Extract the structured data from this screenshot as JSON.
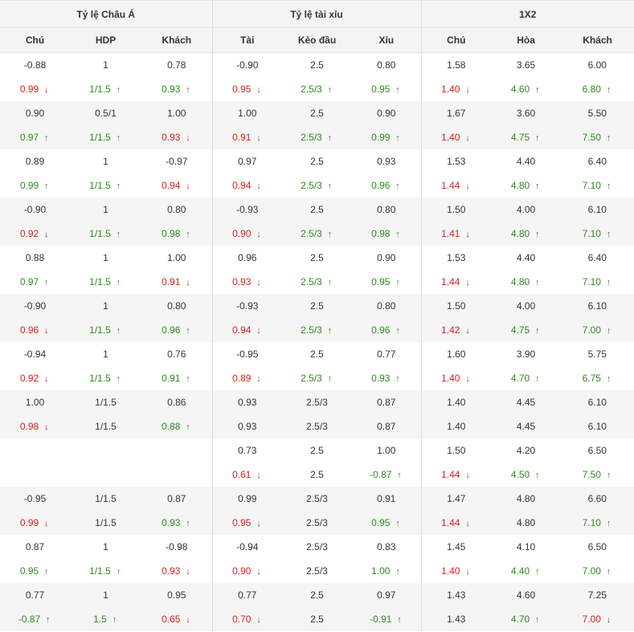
{
  "colors": {
    "up": "#2e8b1e",
    "down": "#d6201c"
  },
  "groups": [
    "Tỷ lệ Châu Á",
    "Tỷ lệ tài xỉu",
    "1X2"
  ],
  "columns": [
    "Chú",
    "HDP",
    "Khách",
    "Tài",
    "Kèo đầu",
    "Xỉu",
    "Chú",
    "Hòa",
    "Khách"
  ],
  "arrows": {
    "up": "↑",
    "down": "↓"
  },
  "blocks": [
    {
      "rows": [
        [
          {
            "v": "-0.88"
          },
          {
            "v": "1"
          },
          {
            "v": "0.78"
          },
          {
            "v": "-0.90"
          },
          {
            "v": "2.5"
          },
          {
            "v": "0.80"
          },
          {
            "v": "1.58"
          },
          {
            "v": "3.65"
          },
          {
            "v": "6.00"
          }
        ],
        [
          {
            "v": "0.99",
            "d": "down"
          },
          {
            "v": "1/1.5",
            "d": "up"
          },
          {
            "v": "0.93",
            "d": "up"
          },
          {
            "v": "0.95",
            "d": "down"
          },
          {
            "v": "2.5/3",
            "d": "up"
          },
          {
            "v": "0.95",
            "d": "up"
          },
          {
            "v": "1.40",
            "d": "down"
          },
          {
            "v": "4.60",
            "d": "up"
          },
          {
            "v": "6.80",
            "d": "up"
          }
        ]
      ]
    },
    {
      "rows": [
        [
          {
            "v": "0.90"
          },
          {
            "v": "0.5/1"
          },
          {
            "v": "1.00"
          },
          {
            "v": "1.00"
          },
          {
            "v": "2.5"
          },
          {
            "v": "0.90"
          },
          {
            "v": "1.67"
          },
          {
            "v": "3.60"
          },
          {
            "v": "5.50"
          }
        ],
        [
          {
            "v": "0.97",
            "d": "up"
          },
          {
            "v": "1/1.5",
            "d": "up"
          },
          {
            "v": "0.93",
            "d": "down"
          },
          {
            "v": "0.91",
            "d": "down"
          },
          {
            "v": "2.5/3",
            "d": "up"
          },
          {
            "v": "0.99",
            "d": "up"
          },
          {
            "v": "1.40",
            "d": "down"
          },
          {
            "v": "4.75",
            "d": "up"
          },
          {
            "v": "7.50",
            "d": "up"
          }
        ]
      ]
    },
    {
      "rows": [
        [
          {
            "v": "0.89"
          },
          {
            "v": "1"
          },
          {
            "v": "-0.97"
          },
          {
            "v": "0.97"
          },
          {
            "v": "2.5"
          },
          {
            "v": "0.93"
          },
          {
            "v": "1.53"
          },
          {
            "v": "4.40"
          },
          {
            "v": "6.40"
          }
        ],
        [
          {
            "v": "0.99",
            "d": "up"
          },
          {
            "v": "1/1.5",
            "d": "up"
          },
          {
            "v": "0.94",
            "d": "down"
          },
          {
            "v": "0.94",
            "d": "down"
          },
          {
            "v": "2.5/3",
            "d": "up"
          },
          {
            "v": "0.96",
            "d": "up"
          },
          {
            "v": "1.44",
            "d": "down"
          },
          {
            "v": "4.80",
            "d": "up"
          },
          {
            "v": "7.10",
            "d": "up"
          }
        ]
      ]
    },
    {
      "rows": [
        [
          {
            "v": "-0.90"
          },
          {
            "v": "1"
          },
          {
            "v": "0.80"
          },
          {
            "v": "-0.93"
          },
          {
            "v": "2.5"
          },
          {
            "v": "0.80"
          },
          {
            "v": "1.50"
          },
          {
            "v": "4.00"
          },
          {
            "v": "6.10"
          }
        ],
        [
          {
            "v": "0.92",
            "d": "down"
          },
          {
            "v": "1/1.5",
            "d": "up"
          },
          {
            "v": "0.98",
            "d": "up"
          },
          {
            "v": "0.90",
            "d": "down"
          },
          {
            "v": "2.5/3",
            "d": "up"
          },
          {
            "v": "0.98",
            "d": "up"
          },
          {
            "v": "1.41",
            "d": "down"
          },
          {
            "v": "4.80",
            "d": "up"
          },
          {
            "v": "7.10",
            "d": "up"
          }
        ]
      ]
    },
    {
      "rows": [
        [
          {
            "v": "0.88"
          },
          {
            "v": "1"
          },
          {
            "v": "1.00"
          },
          {
            "v": "0.96"
          },
          {
            "v": "2.5"
          },
          {
            "v": "0.90"
          },
          {
            "v": "1.53"
          },
          {
            "v": "4.40"
          },
          {
            "v": "6.40"
          }
        ],
        [
          {
            "v": "0.97",
            "d": "up"
          },
          {
            "v": "1/1.5",
            "d": "up"
          },
          {
            "v": "0.91",
            "d": "down"
          },
          {
            "v": "0.93",
            "d": "down"
          },
          {
            "v": "2.5/3",
            "d": "up"
          },
          {
            "v": "0.95",
            "d": "up"
          },
          {
            "v": "1.44",
            "d": "down"
          },
          {
            "v": "4.80",
            "d": "up"
          },
          {
            "v": "7.10",
            "d": "up"
          }
        ]
      ]
    },
    {
      "rows": [
        [
          {
            "v": "-0.90"
          },
          {
            "v": "1"
          },
          {
            "v": "0.80"
          },
          {
            "v": "-0.93"
          },
          {
            "v": "2.5"
          },
          {
            "v": "0.80"
          },
          {
            "v": "1.50"
          },
          {
            "v": "4.00"
          },
          {
            "v": "6.10"
          }
        ],
        [
          {
            "v": "0.96",
            "d": "down"
          },
          {
            "v": "1/1.5",
            "d": "up"
          },
          {
            "v": "0.96",
            "d": "up"
          },
          {
            "v": "0.94",
            "d": "down"
          },
          {
            "v": "2.5/3",
            "d": "up"
          },
          {
            "v": "0.96",
            "d": "up"
          },
          {
            "v": "1.42",
            "d": "down"
          },
          {
            "v": "4.75",
            "d": "up"
          },
          {
            "v": "7.00",
            "d": "up"
          }
        ]
      ]
    },
    {
      "rows": [
        [
          {
            "v": "-0.94"
          },
          {
            "v": "1"
          },
          {
            "v": "0.76"
          },
          {
            "v": "-0.95"
          },
          {
            "v": "2.5"
          },
          {
            "v": "0.77"
          },
          {
            "v": "1.60"
          },
          {
            "v": "3.90"
          },
          {
            "v": "5.75"
          }
        ],
        [
          {
            "v": "0.92",
            "d": "down"
          },
          {
            "v": "1/1.5",
            "d": "up"
          },
          {
            "v": "0.91",
            "d": "up"
          },
          {
            "v": "0.89",
            "d": "down"
          },
          {
            "v": "2.5/3",
            "d": "up"
          },
          {
            "v": "0.93",
            "d": "up"
          },
          {
            "v": "1.40",
            "d": "down"
          },
          {
            "v": "4.70",
            "d": "up"
          },
          {
            "v": "6.75",
            "d": "up"
          }
        ]
      ]
    },
    {
      "rows": [
        [
          {
            "v": "1.00"
          },
          {
            "v": "1/1.5"
          },
          {
            "v": "0.86"
          },
          {
            "v": "0.93"
          },
          {
            "v": "2.5/3"
          },
          {
            "v": "0.87"
          },
          {
            "v": "1.40"
          },
          {
            "v": "4.45"
          },
          {
            "v": "6.10"
          }
        ],
        [
          {
            "v": "0.98",
            "d": "down"
          },
          {
            "v": "1/1.5"
          },
          {
            "v": "0.88",
            "d": "up"
          },
          {
            "v": "0.93"
          },
          {
            "v": "2.5/3"
          },
          {
            "v": "0.87"
          },
          {
            "v": "1.40"
          },
          {
            "v": "4.45"
          },
          {
            "v": "6.10"
          }
        ]
      ]
    },
    {
      "rows": [
        [
          {
            "v": ""
          },
          {
            "v": ""
          },
          {
            "v": ""
          },
          {
            "v": "0.73"
          },
          {
            "v": "2.5"
          },
          {
            "v": "1.00"
          },
          {
            "v": "1.50"
          },
          {
            "v": "4.20"
          },
          {
            "v": "6.50"
          }
        ],
        [
          {
            "v": ""
          },
          {
            "v": ""
          },
          {
            "v": ""
          },
          {
            "v": "0.61",
            "d": "down"
          },
          {
            "v": "2.5"
          },
          {
            "v": "-0.87",
            "d": "up"
          },
          {
            "v": "1.44",
            "d": "down"
          },
          {
            "v": "4.50",
            "d": "up"
          },
          {
            "v": "7.50",
            "d": "up"
          }
        ]
      ]
    },
    {
      "rows": [
        [
          {
            "v": "-0.95"
          },
          {
            "v": "1/1.5"
          },
          {
            "v": "0.87"
          },
          {
            "v": "0.99"
          },
          {
            "v": "2.5/3"
          },
          {
            "v": "0.91"
          },
          {
            "v": "1.47"
          },
          {
            "v": "4.80"
          },
          {
            "v": "6.60"
          }
        ],
        [
          {
            "v": "0.99",
            "d": "down"
          },
          {
            "v": "1/1.5"
          },
          {
            "v": "0.93",
            "d": "up"
          },
          {
            "v": "0.95",
            "d": "down"
          },
          {
            "v": "2.5/3"
          },
          {
            "v": "0.95",
            "d": "up"
          },
          {
            "v": "1.44",
            "d": "down"
          },
          {
            "v": "4.80"
          },
          {
            "v": "7.10",
            "d": "up"
          }
        ]
      ]
    },
    {
      "rows": [
        [
          {
            "v": "0.87"
          },
          {
            "v": "1"
          },
          {
            "v": "-0.98"
          },
          {
            "v": "-0.94"
          },
          {
            "v": "2.5/3"
          },
          {
            "v": "0.83"
          },
          {
            "v": "1.45"
          },
          {
            "v": "4.10"
          },
          {
            "v": "6.50"
          }
        ],
        [
          {
            "v": "0.95",
            "d": "up"
          },
          {
            "v": "1/1.5",
            "d": "up"
          },
          {
            "v": "0.93",
            "d": "down"
          },
          {
            "v": "0.90",
            "d": "down"
          },
          {
            "v": "2.5/3"
          },
          {
            "v": "1.00",
            "d": "up"
          },
          {
            "v": "1.40",
            "d": "down"
          },
          {
            "v": "4.40",
            "d": "up"
          },
          {
            "v": "7.00",
            "d": "up"
          }
        ]
      ]
    },
    {
      "rows": [
        [
          {
            "v": "0.77"
          },
          {
            "v": "1"
          },
          {
            "v": "0.95"
          },
          {
            "v": "0.77"
          },
          {
            "v": "2.5"
          },
          {
            "v": "0.97"
          },
          {
            "v": "1.43"
          },
          {
            "v": "4.60"
          },
          {
            "v": "7.25"
          }
        ],
        [
          {
            "v": "-0.87",
            "d": "up"
          },
          {
            "v": "1.5",
            "d": "up"
          },
          {
            "v": "0.65",
            "d": "down"
          },
          {
            "v": "0.70",
            "d": "down"
          },
          {
            "v": "2.5"
          },
          {
            "v": "-0.91",
            "d": "up"
          },
          {
            "v": "1.43"
          },
          {
            "v": "4.70",
            "d": "up"
          },
          {
            "v": "7.00",
            "d": "down"
          }
        ]
      ]
    }
  ]
}
